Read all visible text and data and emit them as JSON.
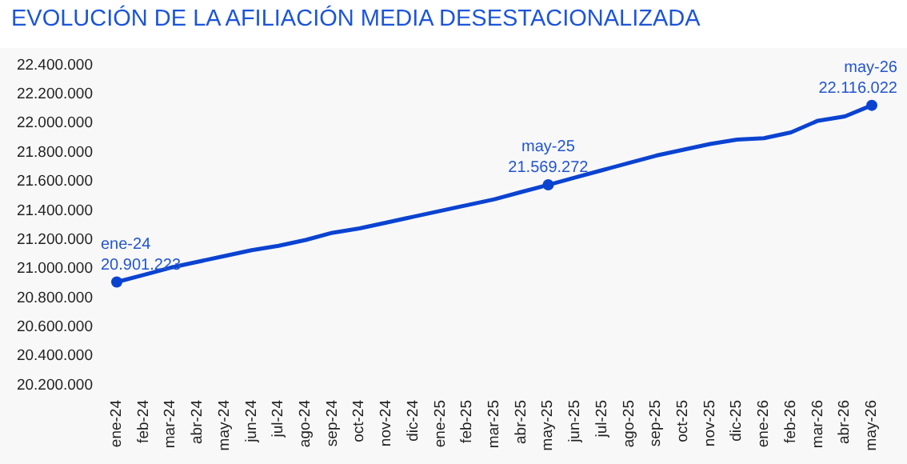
{
  "chart_data": {
    "type": "line",
    "title": "EVOLUCIÓN DE LA AFILIACIÓN MEDIA DESESTACIONALIZADA",
    "categories": [
      "ene-24",
      "feb-24",
      "mar-24",
      "abr-24",
      "may-24",
      "jun-24",
      "jul-24",
      "ago-24",
      "sep-24",
      "oct-24",
      "nov-24",
      "dic-24",
      "ene-25",
      "feb-25",
      "mar-25",
      "abr-25",
      "may-25",
      "jun-25",
      "jul-25",
      "ago-25",
      "sep-25",
      "oct-25",
      "nov-25",
      "dic-25",
      "ene-26",
      "feb-26",
      "mar-26",
      "abr-26",
      "may-26"
    ],
    "series": [
      {
        "color": "#0b43d1",
        "values": [
          20901223,
          20950000,
          21000000,
          21040000,
          21080000,
          21120000,
          21150000,
          21190000,
          21240000,
          21270000,
          21310000,
          21350000,
          21390000,
          21430000,
          21470000,
          21520000,
          21569272,
          21620000,
          21670000,
          21720000,
          21770000,
          21810000,
          21850000,
          21880000,
          21890000,
          21930000,
          22010000,
          22040000,
          22116022
        ],
        "value_labels": [
          "20.901.223",
          null,
          null,
          null,
          null,
          null,
          null,
          null,
          null,
          null,
          null,
          null,
          null,
          null,
          null,
          null,
          "21.569.272",
          null,
          null,
          null,
          null,
          null,
          null,
          null,
          null,
          null,
          null,
          null,
          "22.116.022"
        ]
      }
    ],
    "ylim": [
      20200000,
      22400000
    ],
    "yticks": [
      {
        "value": 20200000,
        "label": "20.200.000"
      },
      {
        "value": 20400000,
        "label": "20.400.000"
      },
      {
        "value": 20600000,
        "label": "20.600.000"
      },
      {
        "value": 20800000,
        "label": "20.800.000"
      },
      {
        "value": 21000000,
        "label": "21.000.000"
      },
      {
        "value": 21200000,
        "label": "21.200.000"
      },
      {
        "value": 21400000,
        "label": "21.400.000"
      },
      {
        "value": 21600000,
        "label": "21.600.000"
      },
      {
        "value": 21800000,
        "label": "21.800.000"
      },
      {
        "value": 22000000,
        "label": "22.000.000"
      },
      {
        "value": 22200000,
        "label": "22.200.000"
      },
      {
        "value": 22400000,
        "label": "22.400.000"
      }
    ],
    "line_style": "solid"
  }
}
